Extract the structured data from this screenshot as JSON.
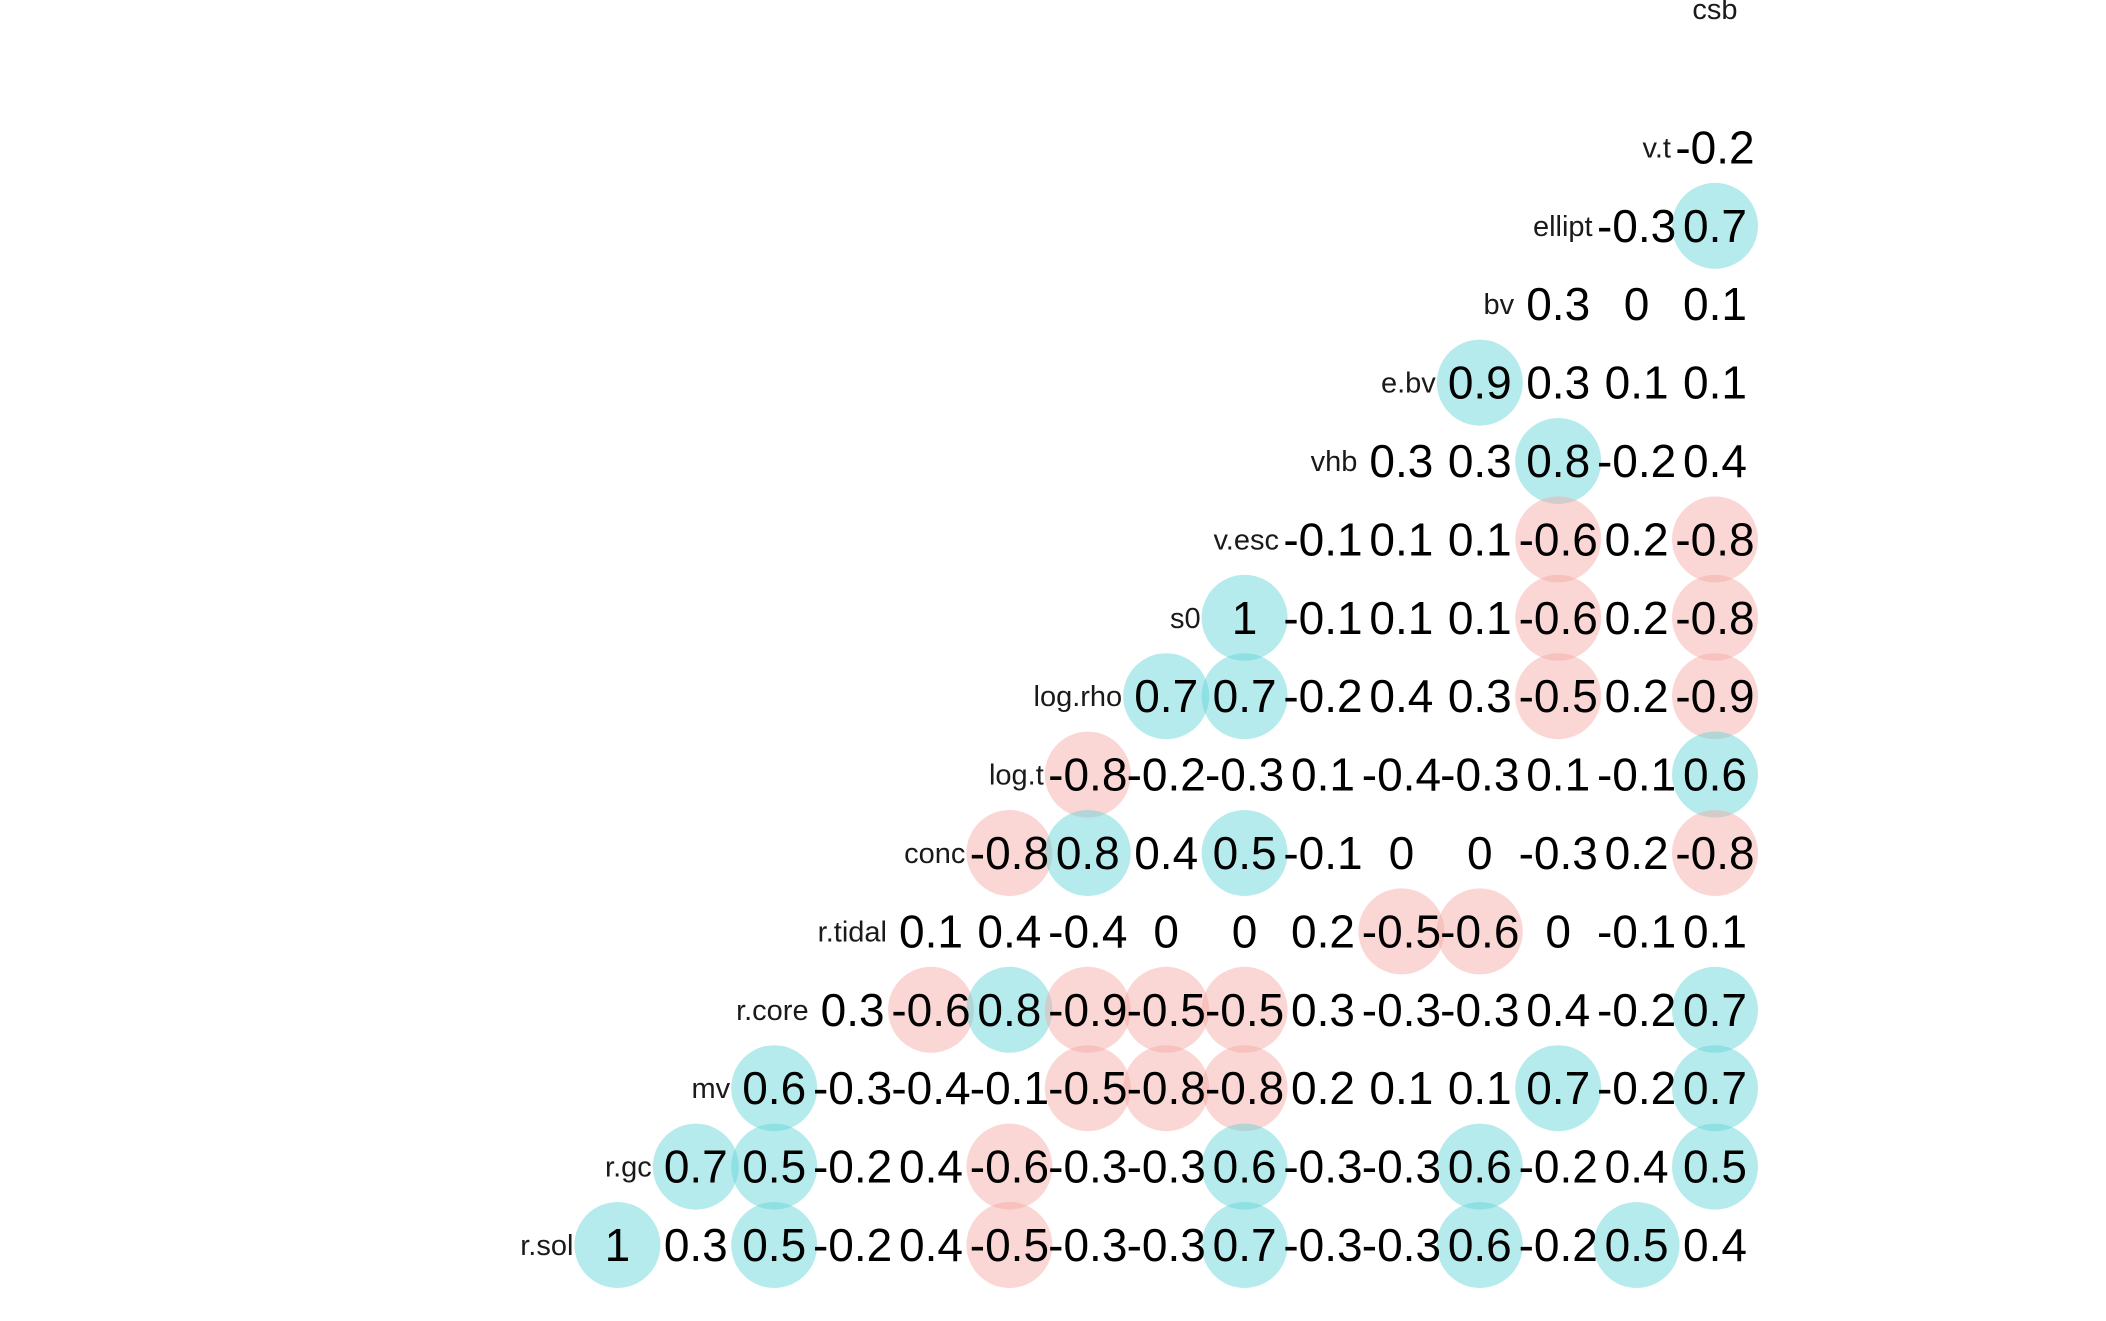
{
  "chart_data": {
    "type": "heatmap",
    "style": "lower-triangle correlation matrix; circles mark |r| >= 0.5",
    "variables": [
      "r.sol",
      "r.gc",
      "mv",
      "r.core",
      "r.tidal",
      "conc",
      "log.t",
      "log.rho",
      "s0",
      "v.esc",
      "vhb",
      "e.bv",
      "bv",
      "ellipt",
      "v.t",
      "csb"
    ],
    "colors": {
      "positive": "#5ed3d8",
      "negative": "#f4a6a1",
      "circle_opacity": 0.45,
      "text": "#000000"
    },
    "matrix": [
      [
        "r.gc",
        [
          "1"
        ]
      ],
      [
        "mv",
        [
          "0.3",
          "0.7"
        ]
      ],
      [
        "r.core",
        [
          "0.5",
          "0.5",
          "0.6"
        ]
      ],
      [
        "r.tidal",
        [
          "-0.2",
          "-0.2",
          "-0.3",
          "0.3"
        ]
      ],
      [
        "conc",
        [
          "0.4",
          "0.4",
          "-0.4",
          "-0.6",
          "0.1"
        ]
      ],
      [
        "log.t",
        [
          "-0.5",
          "-0.6",
          "-0.1",
          "0.8",
          "0.4",
          "-0.8"
        ]
      ],
      [
        "log.rho",
        [
          "-0.3",
          "-0.3",
          "-0.5",
          "-0.9",
          "-0.4",
          "0.8",
          "-0.8"
        ]
      ],
      [
        "s0",
        [
          "-0.3",
          "-0.3",
          "-0.8",
          "-0.5",
          "0",
          "0.4",
          "-0.2",
          "0.7"
        ]
      ],
      [
        "v.esc",
        [
          "0.7",
          "0.6",
          "-0.8",
          "-0.5",
          "0",
          "0.5",
          "-0.3",
          "0.7",
          "1"
        ]
      ],
      [
        "vhb",
        [
          "-0.3",
          "-0.3",
          "0.2",
          "0.3",
          "0.2",
          "-0.1",
          "0.1",
          "-0.2",
          "-0.1",
          "-0.1"
        ]
      ],
      [
        "e.bv",
        [
          "-0.3",
          "-0.3",
          "0.1",
          "-0.3",
          "-0.5",
          "0",
          "-0.4",
          "0.4",
          "0.1",
          "0.1",
          "0.3"
        ]
      ],
      [
        "bv",
        [
          "0.6",
          "0.6",
          "0.1",
          "-0.3",
          "-0.6",
          "0",
          "-0.3",
          "0.3",
          "0.1",
          "0.1",
          "0.3",
          "0.9"
        ]
      ],
      [
        "ellipt",
        [
          "-0.2",
          "-0.2",
          "0.7",
          "0.4",
          "0",
          "-0.3",
          "0.1",
          "-0.5",
          "-0.6",
          "-0.6",
          "0.8",
          "0.3",
          "0.3"
        ]
      ],
      [
        "v.t",
        [
          "0.5",
          "0.4",
          "-0.2",
          "-0.2",
          "-0.1",
          "0.2",
          "-0.1",
          "0.2",
          "0.2",
          "0.2",
          "-0.2",
          "0.1",
          "0",
          "-0.3"
        ]
      ],
      [
        "csb",
        [
          "0.4",
          "0.5",
          "0.7",
          "0.7",
          "0.1",
          "-0.8",
          "0.6",
          "-0.9",
          "-0.8",
          "-0.8",
          "0.4",
          "0.1",
          "0.1",
          "0.7",
          "-0.2"
        ]
      ]
    ]
  }
}
